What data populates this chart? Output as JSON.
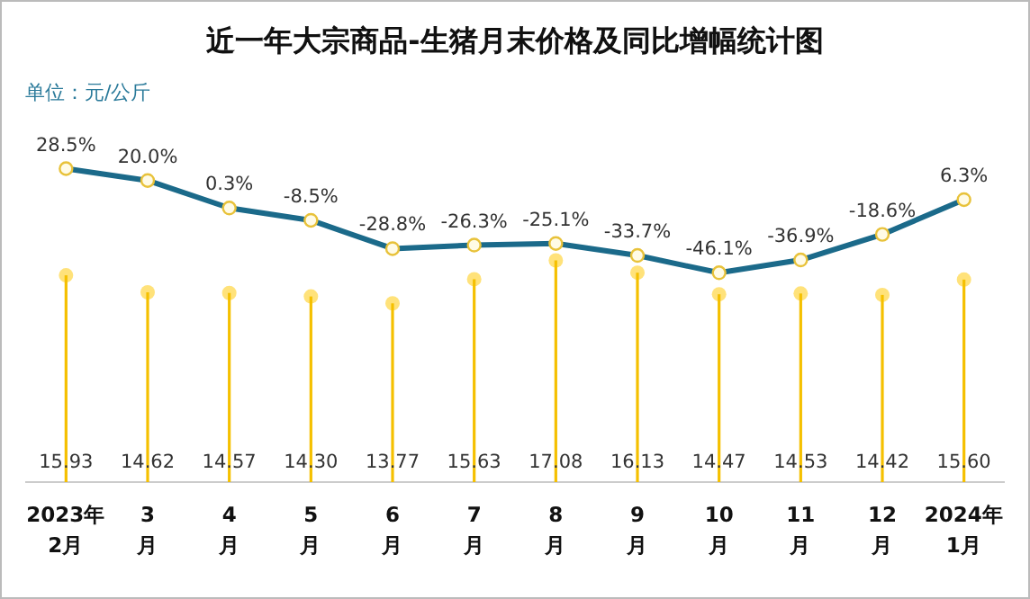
{
  "chart_data": {
    "type": "bar",
    "title": "近一年大宗商品-生猪月末价格及同比增幅统计图",
    "subtitle": "单位：元/公斤",
    "categories": [
      "2023年\n2月",
      "3\n月",
      "4\n月",
      "5\n月",
      "6\n月",
      "7\n月",
      "8\n月",
      "9\n月",
      "10\n月",
      "11\n月",
      "12\n月",
      "2024年\n1月"
    ],
    "series": [
      {
        "color": "#f5c000",
        "values": [
          15.93,
          14.62,
          14.57,
          14.3,
          13.77,
          15.63,
          17.08,
          16.13,
          14.47,
          14.53,
          14.42,
          15.6
        ],
        "value_labels": [
          "15.93",
          "14.62",
          "14.57",
          "14.30",
          "13.77",
          "15.63",
          "17.08",
          "16.13",
          "14.47",
          "14.53",
          "14.42",
          "15.60"
        ]
      },
      {
        "type": "line",
        "axis": "y2",
        "color": "#1b6a8a",
        "marker": "circle",
        "values": [
          28.5,
          20.0,
          0.3,
          -8.5,
          -28.8,
          -26.3,
          -25.1,
          -33.7,
          -46.1,
          -36.9,
          -18.6,
          6.3
        ],
        "value_labels": [
          "28.5%",
          "20.0%",
          "0.3%",
          "-8.5%",
          "-28.8%",
          "-26.3%",
          "-25.1%",
          "-33.7%",
          "-46.1%",
          "-36.9%",
          "-18.6%",
          "6.3%"
        ]
      }
    ],
    "data_labels": true,
    "ylim": [
      0,
      37
    ],
    "y2lim": [
      -196,
      148
    ],
    "tick_labels": "x"
  }
}
